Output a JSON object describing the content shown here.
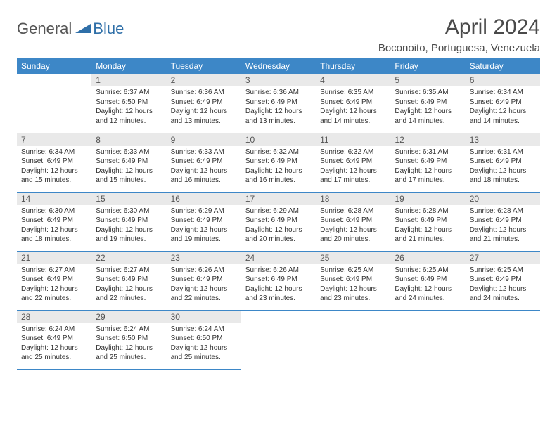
{
  "brand": {
    "part1": "General",
    "part2": "Blue"
  },
  "title": "April 2024",
  "location": "Boconoito, Portuguesa, Venezuela",
  "header_bg": "#3d87c7",
  "header_fg": "#ffffff",
  "daynum_bg": "#e9e9e9",
  "rule_color": "#3d87c7",
  "text_color": "#333333",
  "weekdays": [
    "Sunday",
    "Monday",
    "Tuesday",
    "Wednesday",
    "Thursday",
    "Friday",
    "Saturday"
  ],
  "weeks": [
    [
      null,
      {
        "n": "1",
        "sr": "6:37 AM",
        "ss": "6:50 PM",
        "dl": "12 hours and 12 minutes."
      },
      {
        "n": "2",
        "sr": "6:36 AM",
        "ss": "6:49 PM",
        "dl": "12 hours and 13 minutes."
      },
      {
        "n": "3",
        "sr": "6:36 AM",
        "ss": "6:49 PM",
        "dl": "12 hours and 13 minutes."
      },
      {
        "n": "4",
        "sr": "6:35 AM",
        "ss": "6:49 PM",
        "dl": "12 hours and 14 minutes."
      },
      {
        "n": "5",
        "sr": "6:35 AM",
        "ss": "6:49 PM",
        "dl": "12 hours and 14 minutes."
      },
      {
        "n": "6",
        "sr": "6:34 AM",
        "ss": "6:49 PM",
        "dl": "12 hours and 14 minutes."
      }
    ],
    [
      {
        "n": "7",
        "sr": "6:34 AM",
        "ss": "6:49 PM",
        "dl": "12 hours and 15 minutes."
      },
      {
        "n": "8",
        "sr": "6:33 AM",
        "ss": "6:49 PM",
        "dl": "12 hours and 15 minutes."
      },
      {
        "n": "9",
        "sr": "6:33 AM",
        "ss": "6:49 PM",
        "dl": "12 hours and 16 minutes."
      },
      {
        "n": "10",
        "sr": "6:32 AM",
        "ss": "6:49 PM",
        "dl": "12 hours and 16 minutes."
      },
      {
        "n": "11",
        "sr": "6:32 AM",
        "ss": "6:49 PM",
        "dl": "12 hours and 17 minutes."
      },
      {
        "n": "12",
        "sr": "6:31 AM",
        "ss": "6:49 PM",
        "dl": "12 hours and 17 minutes."
      },
      {
        "n": "13",
        "sr": "6:31 AM",
        "ss": "6:49 PM",
        "dl": "12 hours and 18 minutes."
      }
    ],
    [
      {
        "n": "14",
        "sr": "6:30 AM",
        "ss": "6:49 PM",
        "dl": "12 hours and 18 minutes."
      },
      {
        "n": "15",
        "sr": "6:30 AM",
        "ss": "6:49 PM",
        "dl": "12 hours and 19 minutes."
      },
      {
        "n": "16",
        "sr": "6:29 AM",
        "ss": "6:49 PM",
        "dl": "12 hours and 19 minutes."
      },
      {
        "n": "17",
        "sr": "6:29 AM",
        "ss": "6:49 PM",
        "dl": "12 hours and 20 minutes."
      },
      {
        "n": "18",
        "sr": "6:28 AM",
        "ss": "6:49 PM",
        "dl": "12 hours and 20 minutes."
      },
      {
        "n": "19",
        "sr": "6:28 AM",
        "ss": "6:49 PM",
        "dl": "12 hours and 21 minutes."
      },
      {
        "n": "20",
        "sr": "6:28 AM",
        "ss": "6:49 PM",
        "dl": "12 hours and 21 minutes."
      }
    ],
    [
      {
        "n": "21",
        "sr": "6:27 AM",
        "ss": "6:49 PM",
        "dl": "12 hours and 22 minutes."
      },
      {
        "n": "22",
        "sr": "6:27 AM",
        "ss": "6:49 PM",
        "dl": "12 hours and 22 minutes."
      },
      {
        "n": "23",
        "sr": "6:26 AM",
        "ss": "6:49 PM",
        "dl": "12 hours and 22 minutes."
      },
      {
        "n": "24",
        "sr": "6:26 AM",
        "ss": "6:49 PM",
        "dl": "12 hours and 23 minutes."
      },
      {
        "n": "25",
        "sr": "6:25 AM",
        "ss": "6:49 PM",
        "dl": "12 hours and 23 minutes."
      },
      {
        "n": "26",
        "sr": "6:25 AM",
        "ss": "6:49 PM",
        "dl": "12 hours and 24 minutes."
      },
      {
        "n": "27",
        "sr": "6:25 AM",
        "ss": "6:49 PM",
        "dl": "12 hours and 24 minutes."
      }
    ],
    [
      {
        "n": "28",
        "sr": "6:24 AM",
        "ss": "6:49 PM",
        "dl": "12 hours and 25 minutes."
      },
      {
        "n": "29",
        "sr": "6:24 AM",
        "ss": "6:50 PM",
        "dl": "12 hours and 25 minutes."
      },
      {
        "n": "30",
        "sr": "6:24 AM",
        "ss": "6:50 PM",
        "dl": "12 hours and 25 minutes."
      },
      null,
      null,
      null,
      null
    ]
  ],
  "labels": {
    "sunrise": "Sunrise:",
    "sunset": "Sunset:",
    "daylight": "Daylight:"
  }
}
